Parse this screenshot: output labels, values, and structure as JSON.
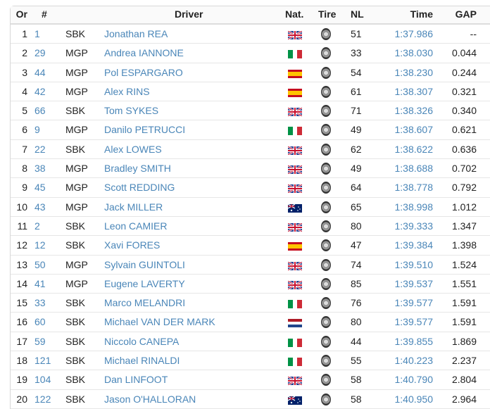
{
  "headers": {
    "or": "Or",
    "num": "#",
    "driver": "Driver",
    "nat": "Nat.",
    "tire": "Tire",
    "nl": "NL",
    "time": "Time",
    "gap": "GAP"
  },
  "flags": {
    "GBR": "uk-flag",
    "ITA": "italy-flag",
    "ESP": "spain-flag",
    "AUS": "australia-flag",
    "NED": "netherlands-flag"
  },
  "colors": {
    "link": "#4a86b8"
  },
  "rows": [
    {
      "or": "1",
      "num": "1",
      "cls": "SBK",
      "driver": "Jonathan REA",
      "nat": "GBR",
      "nl": "51",
      "time": "1:37.986",
      "gap": "--"
    },
    {
      "or": "2",
      "num": "29",
      "cls": "MGP",
      "driver": "Andrea IANNONE",
      "nat": "ITA",
      "nl": "33",
      "time": "1:38.030",
      "gap": "0.044"
    },
    {
      "or": "3",
      "num": "44",
      "cls": "MGP",
      "driver": "Pol ESPARGARO",
      "nat": "ESP",
      "nl": "54",
      "time": "1:38.230",
      "gap": "0.244"
    },
    {
      "or": "4",
      "num": "42",
      "cls": "MGP",
      "driver": "Alex RINS",
      "nat": "ESP",
      "nl": "61",
      "time": "1:38.307",
      "gap": "0.321"
    },
    {
      "or": "5",
      "num": "66",
      "cls": "SBK",
      "driver": "Tom SYKES",
      "nat": "GBR",
      "nl": "71",
      "time": "1:38.326",
      "gap": "0.340"
    },
    {
      "or": "6",
      "num": "9",
      "cls": "MGP",
      "driver": "Danilo PETRUCCI",
      "nat": "ITA",
      "nl": "49",
      "time": "1:38.607",
      "gap": "0.621"
    },
    {
      "or": "7",
      "num": "22",
      "cls": "SBK",
      "driver": "Alex LOWES",
      "nat": "GBR",
      "nl": "62",
      "time": "1:38.622",
      "gap": "0.636"
    },
    {
      "or": "8",
      "num": "38",
      "cls": "MGP",
      "driver": "Bradley SMITH",
      "nat": "GBR",
      "nl": "49",
      "time": "1:38.688",
      "gap": "0.702"
    },
    {
      "or": "9",
      "num": "45",
      "cls": "MGP",
      "driver": "Scott REDDING",
      "nat": "GBR",
      "nl": "64",
      "time": "1:38.778",
      "gap": "0.792"
    },
    {
      "or": "10",
      "num": "43",
      "cls": "MGP",
      "driver": "Jack MILLER",
      "nat": "AUS",
      "nl": "65",
      "time": "1:38.998",
      "gap": "1.012"
    },
    {
      "or": "11",
      "num": "2",
      "cls": "SBK",
      "driver": "Leon CAMIER",
      "nat": "GBR",
      "nl": "80",
      "time": "1:39.333",
      "gap": "1.347"
    },
    {
      "or": "12",
      "num": "12",
      "cls": "SBK",
      "driver": "Xavi FORES",
      "nat": "ESP",
      "nl": "47",
      "time": "1:39.384",
      "gap": "1.398"
    },
    {
      "or": "13",
      "num": "50",
      "cls": "MGP",
      "driver": "Sylvain GUINTOLI",
      "nat": "GBR",
      "nl": "74",
      "time": "1:39.510",
      "gap": "1.524"
    },
    {
      "or": "14",
      "num": "41",
      "cls": "MGP",
      "driver": "Eugene LAVERTY",
      "nat": "GBR",
      "nl": "85",
      "time": "1:39.537",
      "gap": "1.551"
    },
    {
      "or": "15",
      "num": "33",
      "cls": "SBK",
      "driver": "Marco MELANDRI",
      "nat": "ITA",
      "nl": "76",
      "time": "1:39.577",
      "gap": "1.591"
    },
    {
      "or": "16",
      "num": "60",
      "cls": "SBK",
      "driver": "Michael VAN DER MARK",
      "nat": "NED",
      "nl": "80",
      "time": "1:39.577",
      "gap": "1.591"
    },
    {
      "or": "17",
      "num": "59",
      "cls": "SBK",
      "driver": "Niccolo CANEPA",
      "nat": "ITA",
      "nl": "44",
      "time": "1:39.855",
      "gap": "1.869"
    },
    {
      "or": "18",
      "num": "121",
      "cls": "SBK",
      "driver": "Michael RINALDI",
      "nat": "ITA",
      "nl": "55",
      "time": "1:40.223",
      "gap": "2.237"
    },
    {
      "or": "19",
      "num": "104",
      "cls": "SBK",
      "driver": "Dan LINFOOT",
      "nat": "GBR",
      "nl": "58",
      "time": "1:40.790",
      "gap": "2.804"
    },
    {
      "or": "20",
      "num": "122",
      "cls": "SBK",
      "driver": "Jason O'HALLORAN",
      "nat": "AUS",
      "nl": "58",
      "time": "1:40.950",
      "gap": "2.964"
    }
  ]
}
